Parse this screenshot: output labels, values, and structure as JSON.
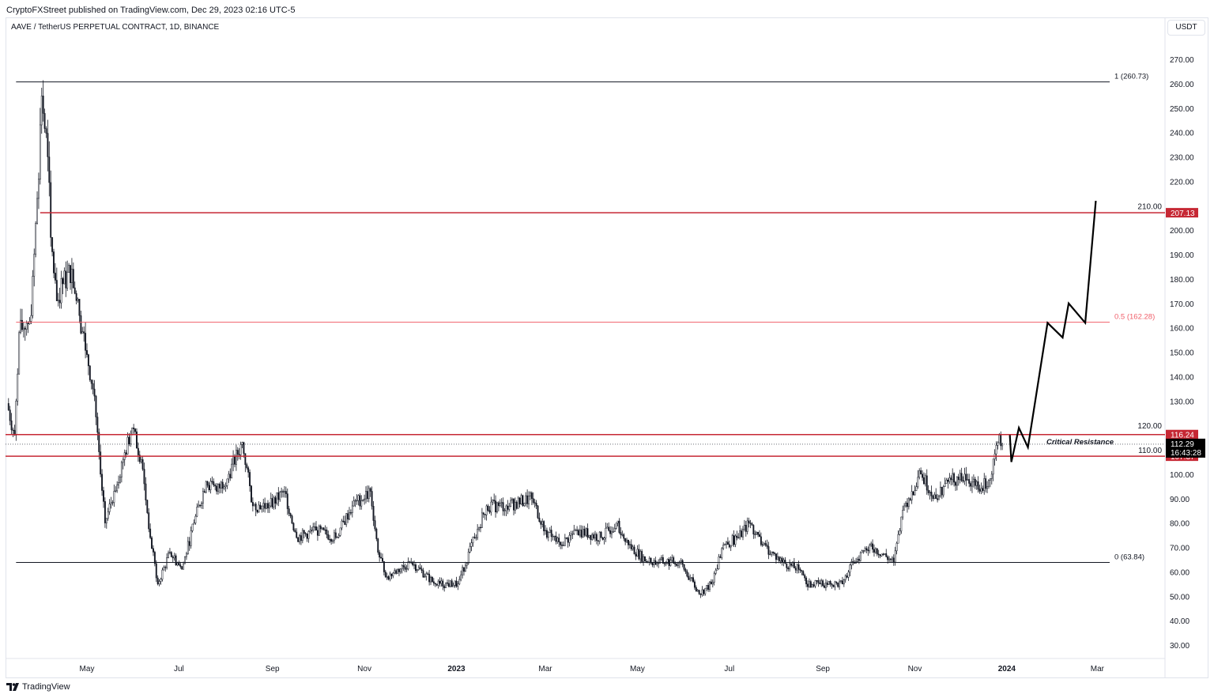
{
  "header": {
    "published": "CryptoFXStreet published on TradingView.com, Dec 29, 2023 02:16 UTC-5",
    "symbol_title": "AAVE / TetherUS PERPETUAL CONTRACT, 1D, BINANCE",
    "currency": "USDT"
  },
  "footer": {
    "brand": "TradingView"
  },
  "chart_data": {
    "type": "candlestick",
    "title": "AAVE / TetherUS PERPETUAL CONTRACT, 1D, BINANCE",
    "ylim": [
      25,
      282
    ],
    "y_ticks": [
      30,
      40,
      50,
      60,
      70,
      80,
      90,
      100,
      110,
      120,
      130,
      140,
      150,
      160,
      170,
      180,
      190,
      200,
      210,
      220,
      230,
      240,
      250,
      260,
      270
    ],
    "x_ticks": [
      {
        "date": "2022-05-01",
        "label": "May"
      },
      {
        "date": "2022-07-01",
        "label": "Jul"
      },
      {
        "date": "2022-09-01",
        "label": "Sep"
      },
      {
        "date": "2022-11-01",
        "label": "Nov"
      },
      {
        "date": "2023-01-01",
        "label": "2023"
      },
      {
        "date": "2023-03-01",
        "label": "Mar"
      },
      {
        "date": "2023-05-01",
        "label": "May"
      },
      {
        "date": "2023-07-01",
        "label": "Jul"
      },
      {
        "date": "2023-09-01",
        "label": "Sep"
      },
      {
        "date": "2023-11-01",
        "label": "Nov"
      },
      {
        "date": "2024-01-01",
        "label": "2024"
      },
      {
        "date": "2024-03-01",
        "label": "Mar"
      }
    ],
    "x_range": [
      "2022-03-08",
      "2024-05-10"
    ],
    "price_path": [
      [
        "2022-03-09",
        129
      ],
      [
        "2022-03-14",
        116
      ],
      [
        "2022-03-17",
        158
      ],
      [
        "2022-03-25",
        165
      ],
      [
        "2022-03-29",
        213
      ],
      [
        "2022-04-01",
        255
      ],
      [
        "2022-04-05",
        230
      ],
      [
        "2022-04-07",
        197
      ],
      [
        "2022-04-11",
        171
      ],
      [
        "2022-04-15",
        178
      ],
      [
        "2022-04-21",
        184
      ],
      [
        "2022-04-26",
        165
      ],
      [
        "2022-05-01",
        149
      ],
      [
        "2022-05-06",
        132
      ],
      [
        "2022-05-10",
        100
      ],
      [
        "2022-05-13",
        80
      ],
      [
        "2022-05-19",
        93
      ],
      [
        "2022-05-25",
        106
      ],
      [
        "2022-05-31",
        119
      ],
      [
        "2022-06-06",
        106
      ],
      [
        "2022-06-12",
        74
      ],
      [
        "2022-06-17",
        55
      ],
      [
        "2022-06-25",
        68
      ],
      [
        "2022-07-03",
        61
      ],
      [
        "2022-07-11",
        80
      ],
      [
        "2022-07-19",
        97
      ],
      [
        "2022-07-26",
        93
      ],
      [
        "2022-08-03",
        100
      ],
      [
        "2022-08-12",
        113
      ],
      [
        "2022-08-19",
        87
      ],
      [
        "2022-08-30",
        87
      ],
      [
        "2022-09-09",
        93
      ],
      [
        "2022-09-17",
        74
      ],
      [
        "2022-09-30",
        77
      ],
      [
        "2022-10-13",
        74
      ],
      [
        "2022-10-24",
        87
      ],
      [
        "2022-11-05",
        93
      ],
      [
        "2022-11-10",
        68
      ],
      [
        "2022-11-16",
        58
      ],
      [
        "2022-12-02",
        64
      ],
      [
        "2022-12-18",
        55
      ],
      [
        "2023-01-02",
        55
      ],
      [
        "2023-01-13",
        74
      ],
      [
        "2023-01-21",
        87
      ],
      [
        "2023-02-03",
        87
      ],
      [
        "2023-02-20",
        90
      ],
      [
        "2023-03-01",
        77
      ],
      [
        "2023-03-11",
        71
      ],
      [
        "2023-03-22",
        77
      ],
      [
        "2023-04-07",
        74
      ],
      [
        "2023-04-17",
        80
      ],
      [
        "2023-04-25",
        71
      ],
      [
        "2023-05-08",
        64
      ],
      [
        "2023-05-29",
        64
      ],
      [
        "2023-06-11",
        51
      ],
      [
        "2023-06-19",
        55
      ],
      [
        "2023-06-27",
        71
      ],
      [
        "2023-07-07",
        74
      ],
      [
        "2023-07-14",
        80
      ],
      [
        "2023-07-23",
        71
      ],
      [
        "2023-08-05",
        64
      ],
      [
        "2023-08-16",
        61
      ],
      [
        "2023-08-21",
        55
      ],
      [
        "2023-09-06",
        55
      ],
      [
        "2023-09-14",
        55
      ],
      [
        "2023-09-21",
        64
      ],
      [
        "2023-10-02",
        71
      ],
      [
        "2023-10-18",
        64
      ],
      [
        "2023-10-25",
        87
      ],
      [
        "2023-11-05",
        100
      ],
      [
        "2023-11-15",
        90
      ],
      [
        "2023-11-23",
        97
      ],
      [
        "2023-12-04",
        100
      ],
      [
        "2023-12-14",
        93
      ],
      [
        "2023-12-22",
        100
      ],
      [
        "2023-12-27",
        116
      ],
      [
        "2023-12-29",
        112.29
      ]
    ],
    "projection": [
      [
        "2024-01-03",
        116
      ],
      [
        "2024-01-04",
        105
      ],
      [
        "2024-01-09",
        119
      ],
      [
        "2024-01-15",
        111
      ],
      [
        "2024-01-28",
        162
      ],
      [
        "2024-02-07",
        156
      ],
      [
        "2024-02-11",
        170
      ],
      [
        "2024-02-22",
        162
      ],
      [
        "2024-02-29",
        212
      ]
    ],
    "levels": [
      {
        "price": 260.73,
        "label": "1 (260.73)",
        "color": "#131722",
        "start": "2022-03-15"
      },
      {
        "price": 207.13,
        "label": "207.13",
        "color": "#c62834",
        "badge": true,
        "start": "2022-03-31"
      },
      {
        "price": 162.28,
        "label": "0.5 (162.28)",
        "color": "#f05f6a",
        "start": "2022-03-15"
      },
      {
        "price": 116.24,
        "label": "116.24",
        "color": "#c62834",
        "badge": true,
        "start": "2022-03-08"
      },
      {
        "price": 107.37,
        "label": "107.37",
        "color": "#c62834",
        "badge": true,
        "start": "2022-03-08"
      },
      {
        "price": 63.84,
        "label": "0 (63.84)",
        "color": "#131722",
        "start": "2022-03-15"
      }
    ],
    "current_price": {
      "value": 112.29,
      "label": "112.29",
      "countdown": "16:43:28"
    },
    "annotation": "Critical Resistance"
  }
}
